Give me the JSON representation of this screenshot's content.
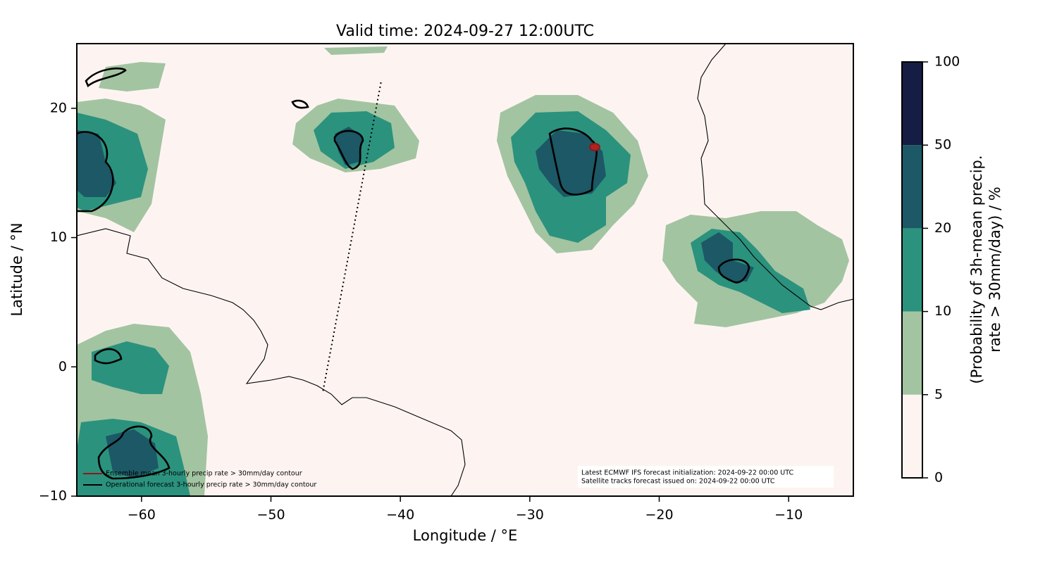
{
  "chart_data": {
    "type": "map",
    "title": "Valid time: 2024-09-27 12:00UTC",
    "x_label": "Longitude / °E",
    "y_label": "Latitude / °N",
    "xlim": [
      -65,
      -5
    ],
    "ylim": [
      -10,
      25
    ],
    "xticks": [
      {
        "value": -60,
        "label": "−60"
      },
      {
        "value": -50,
        "label": "−50"
      },
      {
        "value": -40,
        "label": "−40"
      },
      {
        "value": -30,
        "label": "−30"
      },
      {
        "value": -20,
        "label": "−20"
      },
      {
        "value": -10,
        "label": "−10"
      }
    ],
    "yticks": [
      {
        "value": -10,
        "label": "−10"
      },
      0,
      10,
      20
    ],
    "colorbar": {
      "label_lines": [
        "(Probability of 3h-mean precip.",
        "rate > 30mm/day) / %"
      ],
      "levels": [
        0,
        5,
        10,
        20,
        50,
        100
      ],
      "colors": [
        "#fdf4f2",
        "#a3c4a1",
        "#2b927e",
        "#1c5866",
        "#151d44"
      ]
    },
    "legend": [
      {
        "name": "Ensemble mean 3-hourly precip rate > 30mm/day contour",
        "color": "#8b1a1a"
      },
      {
        "name": "Operational forecast 3-hourly precip rate > 30mm/day contour",
        "color": "#000000"
      }
    ],
    "annotations": [
      "Latest ECMWF IFS forecast initialization: 2024-09-22 00:00 UTC",
      "Satellite tracks forecast issued on: 2024-09-22 00:00 UTC"
    ],
    "satellite_track": {
      "lon": [
        -41.5,
        -46
      ],
      "lat": [
        22,
        -2
      ]
    }
  }
}
